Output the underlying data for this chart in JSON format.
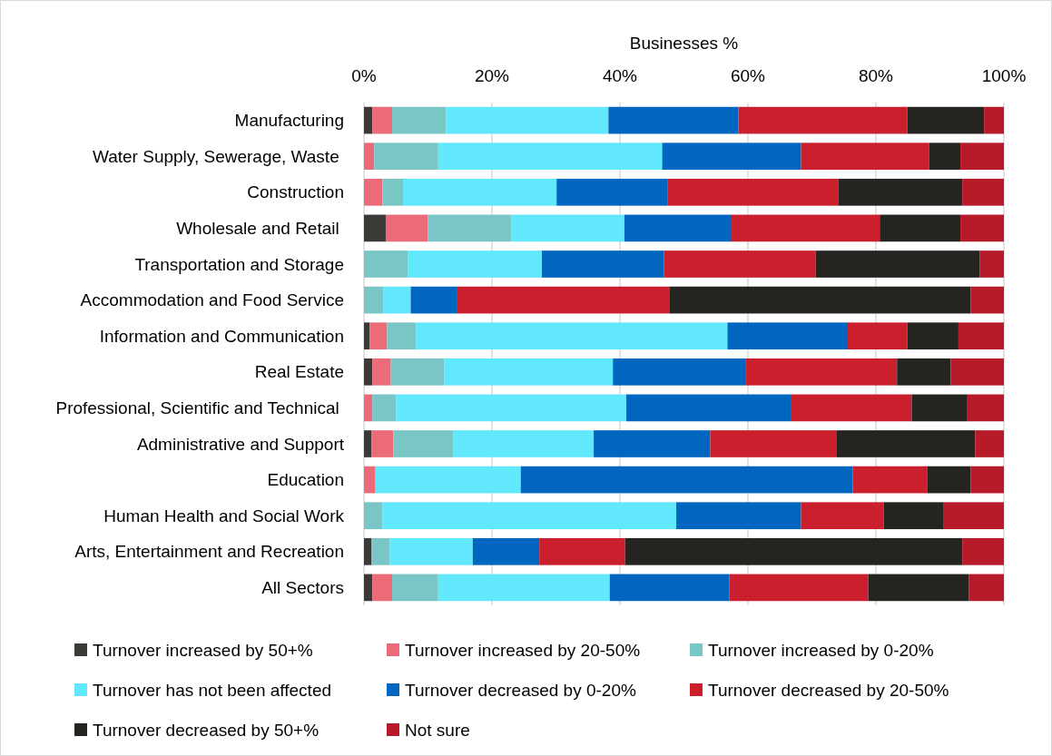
{
  "chart_data": {
    "type": "bar",
    "orientation": "horizontal",
    "stacked": true,
    "xlabel": "Businesses %",
    "categories": [
      "Manufacturing",
      "Water Supply, Sewerage, Waste ",
      "Construction",
      "Wholesale and Retail ",
      "Transportation and Storage",
      "Accommodation and Food Service",
      "Information and Communication",
      "Real Estate",
      "Professional, Scientific and Technical ",
      "Administrative and Support",
      "Education",
      "Human Health and Social Work",
      "Arts, Entertainment and Recreation",
      "All Sectors"
    ],
    "series": [
      {
        "name": "Turnover increased by 50+%",
        "color": "#3c3a36",
        "values": [
          1.3,
          0,
          0,
          3.4,
          0,
          0,
          0.9,
          1.3,
          0,
          1.2,
          0,
          0,
          1.2,
          1.3
        ]
      },
      {
        "name": "Turnover increased by 20-50%",
        "color": "#ec6b78",
        "values": [
          3.1,
          1.6,
          2.9,
          6.6,
          0,
          0,
          2.7,
          2.9,
          1.3,
          3.4,
          1.7,
          0,
          0,
          3.1
        ]
      },
      {
        "name": "Turnover increased by 0-20%",
        "color": "#7ac6c6",
        "values": [
          8.4,
          10.0,
          3.2,
          13.0,
          6.9,
          3.0,
          4.5,
          8.3,
          3.7,
          9.4,
          0,
          2.9,
          2.8,
          7.2
        ]
      },
      {
        "name": "Turnover has not been affected",
        "color": "#62e8fc",
        "values": [
          25.4,
          35.0,
          24.0,
          17.7,
          20.9,
          4.3,
          48.7,
          26.4,
          36.0,
          21.9,
          22.8,
          45.9,
          13.0,
          26.8
        ]
      },
      {
        "name": "Turnover decreased by 0-20%",
        "color": "#0066bf",
        "values": [
          20.3,
          21.7,
          17.3,
          16.6,
          19.1,
          7.3,
          18.8,
          20.8,
          25.8,
          18.2,
          51.9,
          19.5,
          10.4,
          18.7
        ]
      },
      {
        "name": "Turnover decreased by 20-50%",
        "color": "#cc1f2e",
        "values": [
          26.4,
          20.0,
          26.7,
          23.3,
          23.7,
          33.2,
          9.3,
          23.6,
          18.8,
          19.7,
          11.6,
          12.9,
          13.4,
          21.7
        ]
      },
      {
        "name": "Turnover decreased by 50+%",
        "color": "#252420",
        "values": [
          12.0,
          4.9,
          19.4,
          12.6,
          25.6,
          47.0,
          8.0,
          8.4,
          8.7,
          21.7,
          6.8,
          9.3,
          52.7,
          15.7
        ]
      },
      {
        "name": "Not sure",
        "color": "#b71a29",
        "values": [
          3.1,
          6.8,
          6.5,
          6.8,
          3.8,
          5.2,
          7.1,
          8.3,
          5.7,
          4.5,
          5.2,
          9.5,
          6.5,
          5.5
        ]
      }
    ],
    "xlim": [
      0,
      100
    ],
    "xticks": [
      {
        "value": 0,
        "label": "0%"
      },
      {
        "value": 20,
        "label": "20%"
      },
      {
        "value": 40,
        "label": "40%"
      },
      {
        "value": 60,
        "label": "60%"
      },
      {
        "value": 80,
        "label": "80%"
      },
      {
        "value": 100,
        "label": "100%"
      }
    ],
    "grid": "x",
    "legend": "bottom"
  }
}
